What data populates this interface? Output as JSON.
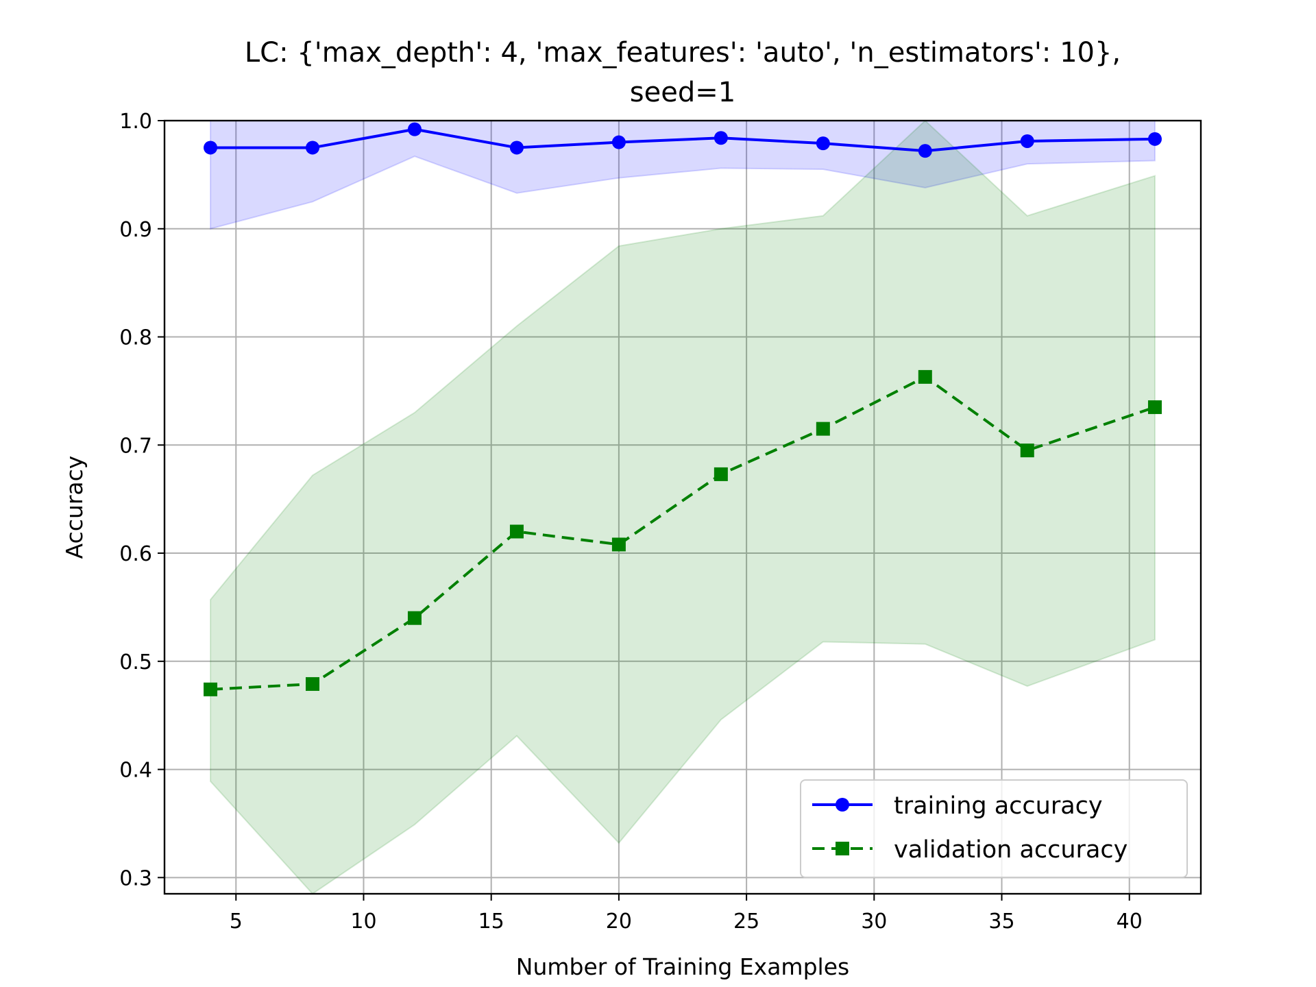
{
  "chart_data": {
    "type": "line",
    "title": [
      "LC: {'max_depth': 4, 'max_features': 'auto', 'n_estimators': 10},",
      "seed=1"
    ],
    "xlabel": "Number of Training Examples",
    "ylabel": "Accuracy",
    "xlim": [
      2.2,
      42.8
    ],
    "ylim": [
      0.285,
      1.0
    ],
    "xticks": [
      5,
      10,
      15,
      20,
      25,
      30,
      35,
      40
    ],
    "yticks": [
      0.3,
      0.4,
      0.5,
      0.6,
      0.7,
      0.8,
      0.9,
      1.0
    ],
    "grid": true,
    "legend_position": "lower-right",
    "x": [
      4,
      8,
      12,
      16,
      20,
      24,
      28,
      32,
      36,
      41
    ],
    "series": [
      {
        "name": "training accuracy",
        "color": "#0000ff",
        "marker": "circle",
        "linestyle": "solid",
        "values": [
          0.975,
          0.975,
          0.992,
          0.975,
          0.98,
          0.984,
          0.979,
          0.972,
          0.981,
          0.983
        ],
        "band_upper": [
          1.0,
          1.0,
          1.0,
          1.0,
          1.0,
          1.0,
          1.0,
          1.0,
          1.0,
          1.0
        ],
        "band_lower": [
          0.9,
          0.925,
          0.967,
          0.933,
          0.947,
          0.956,
          0.955,
          0.938,
          0.96,
          0.963
        ],
        "band_color": "#0000ff"
      },
      {
        "name": "validation accuracy",
        "color": "#008000",
        "marker": "square",
        "linestyle": "dashed",
        "values": [
          0.474,
          0.479,
          0.54,
          0.62,
          0.608,
          0.673,
          0.715,
          0.763,
          0.695,
          0.735
        ],
        "band_upper": [
          0.557,
          0.672,
          0.73,
          0.81,
          0.884,
          0.9,
          0.912,
          1.007,
          0.912,
          0.949
        ],
        "band_lower": [
          0.389,
          0.285,
          0.349,
          0.431,
          0.332,
          0.446,
          0.518,
          0.516,
          0.477,
          0.52
        ],
        "band_color": "#008000"
      }
    ]
  }
}
